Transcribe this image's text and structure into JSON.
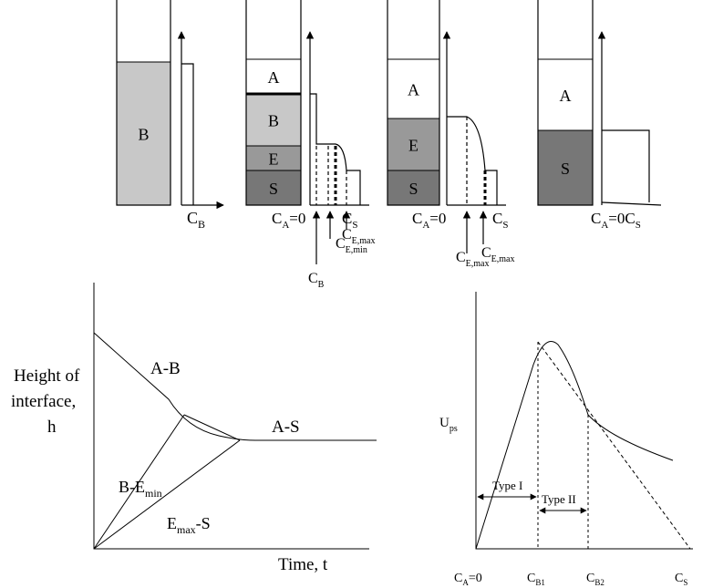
{
  "top_panels": [
    {
      "layers": [
        "B"
      ],
      "axis_labels": [
        {
          "main": "C",
          "sub": "B"
        }
      ]
    },
    {
      "layers": [
        "A",
        "B",
        "E",
        "S"
      ],
      "axis_labels": [
        {
          "main": "C",
          "sub": "A",
          "after": "=0"
        },
        {
          "main": "C",
          "sub": "S"
        },
        {
          "main": "C",
          "sub": "E,min"
        },
        {
          "main": "C",
          "sub": "E,max"
        },
        {
          "main": "C",
          "sub": "B"
        }
      ]
    },
    {
      "layers": [
        "A",
        "E",
        "S"
      ],
      "axis_labels": [
        {
          "main": "C",
          "sub": "A",
          "after": "=0"
        },
        {
          "main": "C",
          "sub": "S"
        },
        {
          "main": "C",
          "sub": "E,max"
        },
        {
          "main": "C",
          "sub": "E,max"
        }
      ]
    },
    {
      "layers": [
        "A",
        "S"
      ],
      "axis_labels": [
        {
          "main": "C",
          "sub": "A",
          "after": "=0C",
          "sub2": "S"
        }
      ]
    }
  ],
  "settling_plot": {
    "y_label": [
      "Height of",
      "interface,",
      "h"
    ],
    "x_label": "Time, t",
    "curve_labels": [
      "A-B",
      "A-S",
      {
        "main": "B-E",
        "sub": "min"
      },
      {
        "main": "E",
        "sub": "max",
        "after": "-S"
      }
    ]
  },
  "flux_plot": {
    "y_label": {
      "main": "U",
      "sub": "ps"
    },
    "regions": [
      "Type I",
      "Type II"
    ],
    "x_labels": [
      {
        "main": "C",
        "sub": "A",
        "after": "=0"
      },
      {
        "main": "C",
        "sub": "B1"
      },
      {
        "main": "C",
        "sub": "B2"
      },
      {
        "main": "C",
        "sub": "S"
      }
    ]
  }
}
